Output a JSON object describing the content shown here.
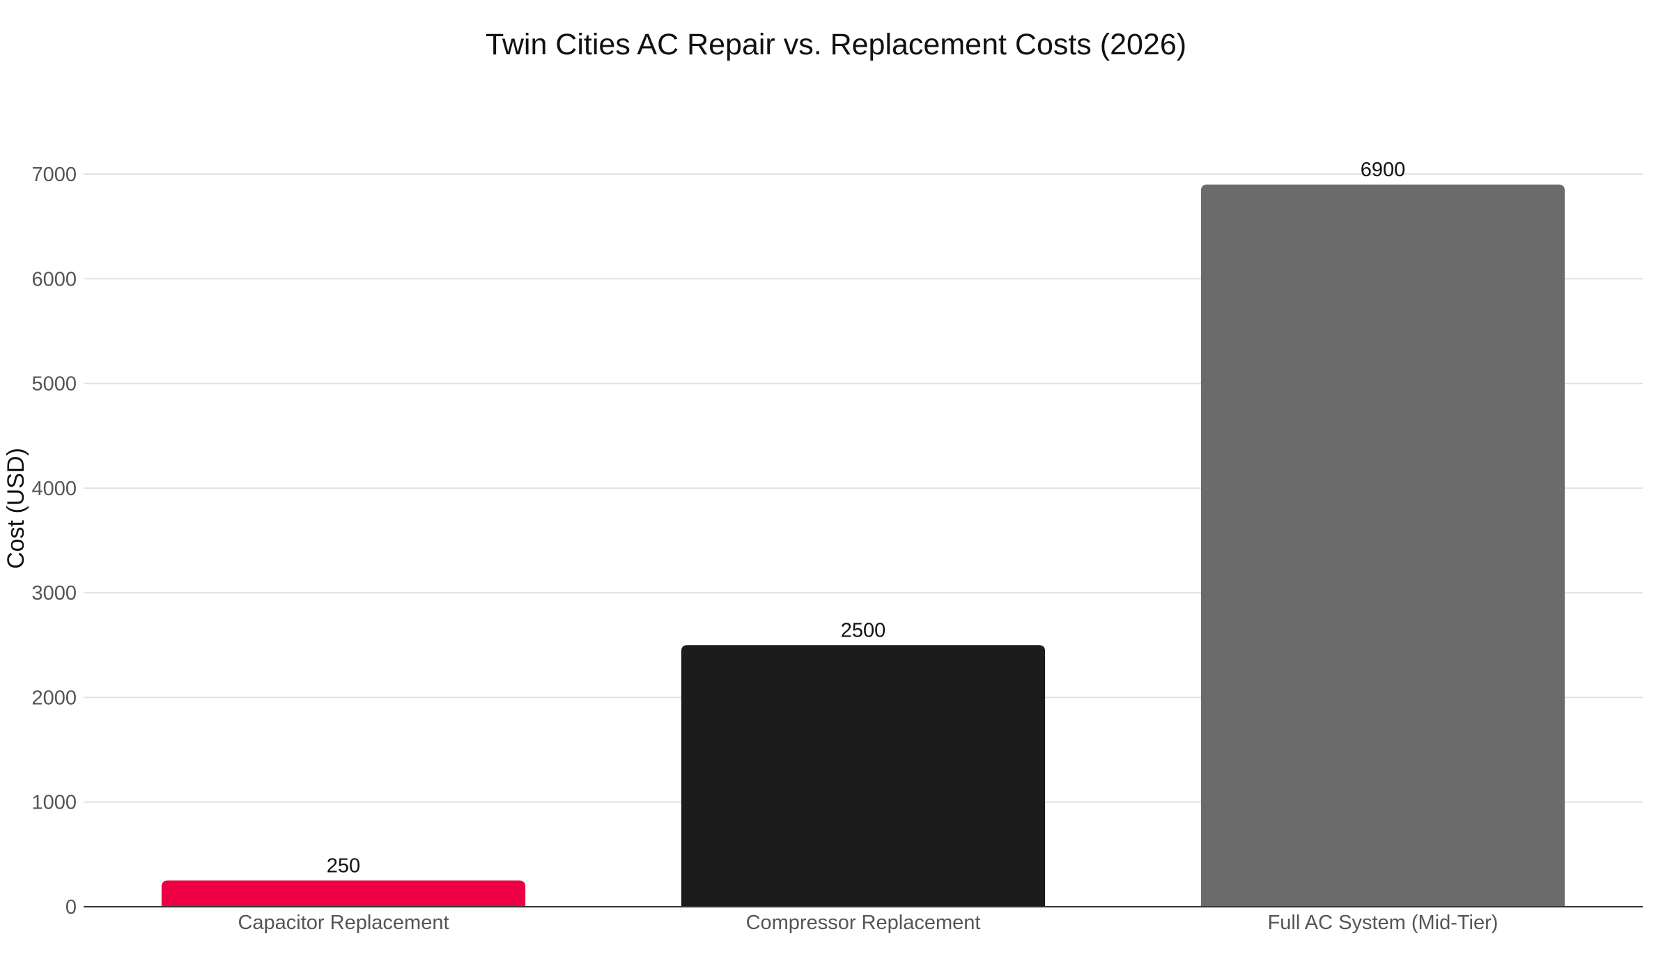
{
  "chart_data": {
    "type": "bar",
    "title": "Twin Cities AC Repair vs. Replacement Costs (2026)",
    "xlabel": "",
    "ylabel": "Cost (USD)",
    "categories": [
      "Capacitor Replacement",
      "Compressor Replacement",
      "Full AC System (Mid-Tier)"
    ],
    "values": [
      250,
      2500,
      6900
    ],
    "data_labels": [
      "250",
      "2500",
      "6900"
    ],
    "colors": [
      "#ee0045",
      "#1c1c1c",
      "#6b6b6b"
    ],
    "ylim": [
      0,
      7000
    ],
    "yticks": [
      0,
      1000,
      2000,
      3000,
      4000,
      5000,
      6000,
      7000
    ],
    "ytick_labels": [
      "0",
      "1000",
      "2000",
      "3000",
      "4000",
      "5000",
      "6000",
      "7000"
    ],
    "grid": true,
    "legend": "none"
  }
}
